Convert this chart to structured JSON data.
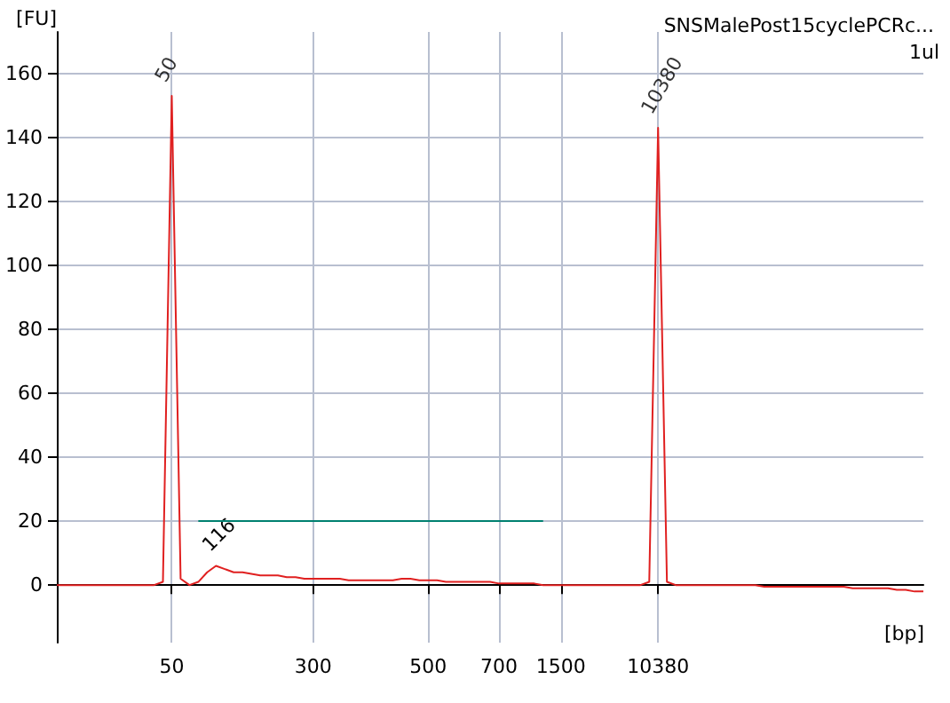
{
  "chart_data": {
    "type": "line",
    "title": "SNSMalePost15cyclePCRc...",
    "xlabel": "[bp]",
    "ylabel": "[FU]",
    "annotations": [
      "1ul",
      {
        "text": "50",
        "x": "50",
        "y": 153
      },
      "116",
      {
        "text": "10380",
        "x": "10380",
        "y": 143
      }
    ],
    "categories": [
      null,
      null,
      null,
      null,
      null,
      null,
      null,
      null,
      null,
      null,
      null,
      null,
      null,
      "50",
      null,
      null,
      null,
      null,
      null,
      null,
      null,
      null,
      null,
      null,
      null,
      null,
      null,
      null,
      null,
      "300",
      null,
      null,
      null,
      null,
      null,
      null,
      null,
      null,
      null,
      null,
      null,
      null,
      "500",
      null,
      null,
      null,
      null,
      null,
      null,
      null,
      "700",
      null,
      null,
      null,
      null,
      null,
      null,
      "1500",
      null,
      null,
      null,
      null,
      null,
      null,
      null,
      null,
      null,
      null,
      "10380",
      null,
      null,
      null,
      null,
      null,
      null,
      null,
      null,
      null,
      null,
      null,
      null,
      null,
      null,
      null,
      null,
      null,
      null,
      null,
      null,
      null,
      null,
      null,
      null,
      null,
      null,
      null,
      null,
      null,
      null
    ],
    "series": [
      {
        "color": "#e02020",
        "values": [
          0,
          0,
          0,
          0,
          0,
          0,
          0,
          0,
          0,
          0,
          0,
          0,
          1,
          153,
          2,
          0,
          1,
          4,
          6,
          5,
          4,
          4,
          3.5,
          3,
          3,
          3,
          2.5,
          2.5,
          2,
          2,
          2,
          2,
          2,
          1.5,
          1.5,
          1.5,
          1.5,
          1.5,
          1.5,
          2,
          2,
          1.5,
          1.5,
          1.5,
          1,
          1,
          1,
          1,
          1,
          1,
          0.5,
          0.5,
          0.5,
          0.5,
          0.5,
          0,
          0,
          0,
          0,
          0,
          0,
          0,
          0,
          0,
          0,
          0,
          0,
          1,
          143,
          1,
          0,
          0,
          0,
          0,
          0,
          0,
          0,
          0,
          0,
          0,
          -0.5,
          -0.5,
          -0.5,
          -0.5,
          -0.5,
          -0.5,
          -0.5,
          -0.5,
          -0.5,
          -0.5,
          -1,
          -1,
          -1,
          -1,
          -1,
          -1.5,
          -1.5,
          -2,
          -2
        ]
      },
      {
        "color": "#008070",
        "values": [
          null,
          null,
          null,
          null,
          null,
          null,
          null,
          null,
          null,
          null,
          null,
          null,
          null,
          null,
          null,
          null,
          20,
          20,
          20,
          20,
          20,
          20,
          20,
          20,
          20,
          20,
          20,
          20,
          20,
          20,
          20,
          20,
          20,
          20,
          20,
          20,
          20,
          20,
          20,
          20,
          20,
          20,
          20,
          20,
          20,
          20,
          20,
          20,
          20,
          20,
          20,
          20,
          20,
          20,
          20,
          20,
          null,
          null,
          null,
          null,
          null,
          null,
          null,
          null,
          null,
          null,
          null,
          null,
          null,
          null,
          null,
          null,
          null,
          null,
          null,
          null,
          null,
          null,
          null,
          null,
          null,
          null,
          null,
          null,
          null,
          null,
          null,
          null,
          null,
          null,
          null,
          null,
          null,
          null,
          null,
          null,
          null,
          null,
          null
        ]
      }
    ],
    "ylim": [
      -18,
      173
    ],
    "yticks": [
      0,
      20,
      40,
      60,
      80,
      100,
      120,
      140,
      160
    ],
    "grid": true,
    "marker": "none",
    "line_style": "solid"
  }
}
